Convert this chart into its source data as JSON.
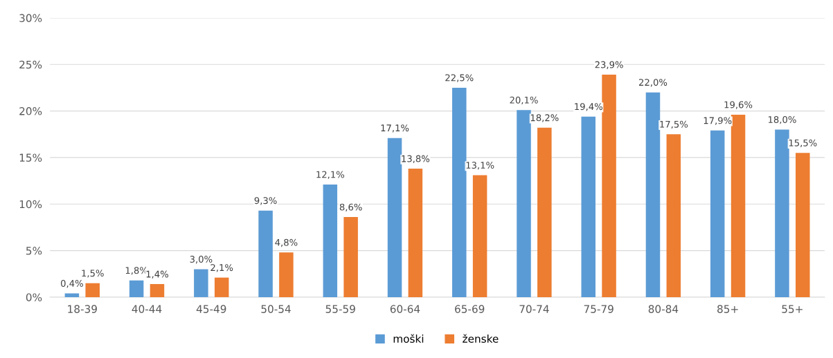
{
  "chart_data": {
    "type": "bar",
    "categories": [
      "18-39",
      "40-44",
      "45-49",
      "50-54",
      "55-59",
      "60-64",
      "65-69",
      "70-74",
      "75-79",
      "80-84",
      "85+",
      "55+"
    ],
    "series": [
      {
        "name": "moški",
        "color": "#5b9bd5",
        "values": [
          0.4,
          1.8,
          3.0,
          9.3,
          12.1,
          17.1,
          22.5,
          20.1,
          19.4,
          22.0,
          17.9,
          18.0
        ],
        "value_labels": [
          "0,4%",
          "1,8%",
          "3,0%",
          "9,3%",
          "12,1%",
          "17,1%",
          "22,5%",
          "20,1%",
          "19,4%",
          "22,0%",
          "17,9%",
          "18,0%"
        ]
      },
      {
        "name": "ženske",
        "color": "#ed7d31",
        "values": [
          1.5,
          1.4,
          2.1,
          4.8,
          8.6,
          13.8,
          13.1,
          18.2,
          23.9,
          17.5,
          19.6,
          15.5
        ],
        "value_labels": [
          "1,5%",
          "1,4%",
          "2,1%",
          "4,8%",
          "8,6%",
          "13,8%",
          "13,1%",
          "18,2%",
          "23,9%",
          "17,5%",
          "19,6%",
          "15,5%"
        ]
      }
    ],
    "ylim": [
      0,
      30
    ],
    "yticks": [
      {
        "value": 0,
        "label": "0%"
      },
      {
        "value": 5,
        "label": "5%"
      },
      {
        "value": 10,
        "label": "10%"
      },
      {
        "value": 15,
        "label": "15%"
      },
      {
        "value": 20,
        "label": "20%"
      },
      {
        "value": 25,
        "label": "25%"
      },
      {
        "value": 30,
        "label": "30%"
      }
    ],
    "grid": "y",
    "legend": "bottom"
  }
}
